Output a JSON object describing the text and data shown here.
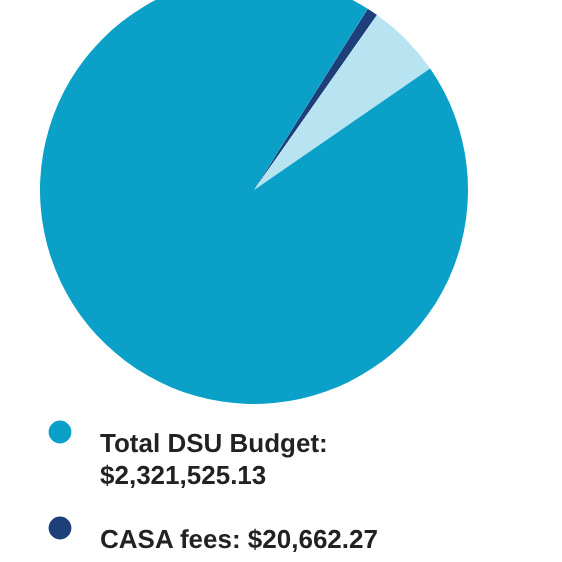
{
  "chart_data": {
    "type": "pie",
    "categories": [
      "CASA fees: $20,662.27",
      null,
      "Total DSU Budget:\n$2,321,525.13"
    ],
    "values": [
      20662.27,
      140000,
      2321525.13
    ],
    "colors": [
      "#1f3f7a",
      "#b8e4f2",
      "#0aa0c8"
    ],
    "legend": "bottom"
  }
}
